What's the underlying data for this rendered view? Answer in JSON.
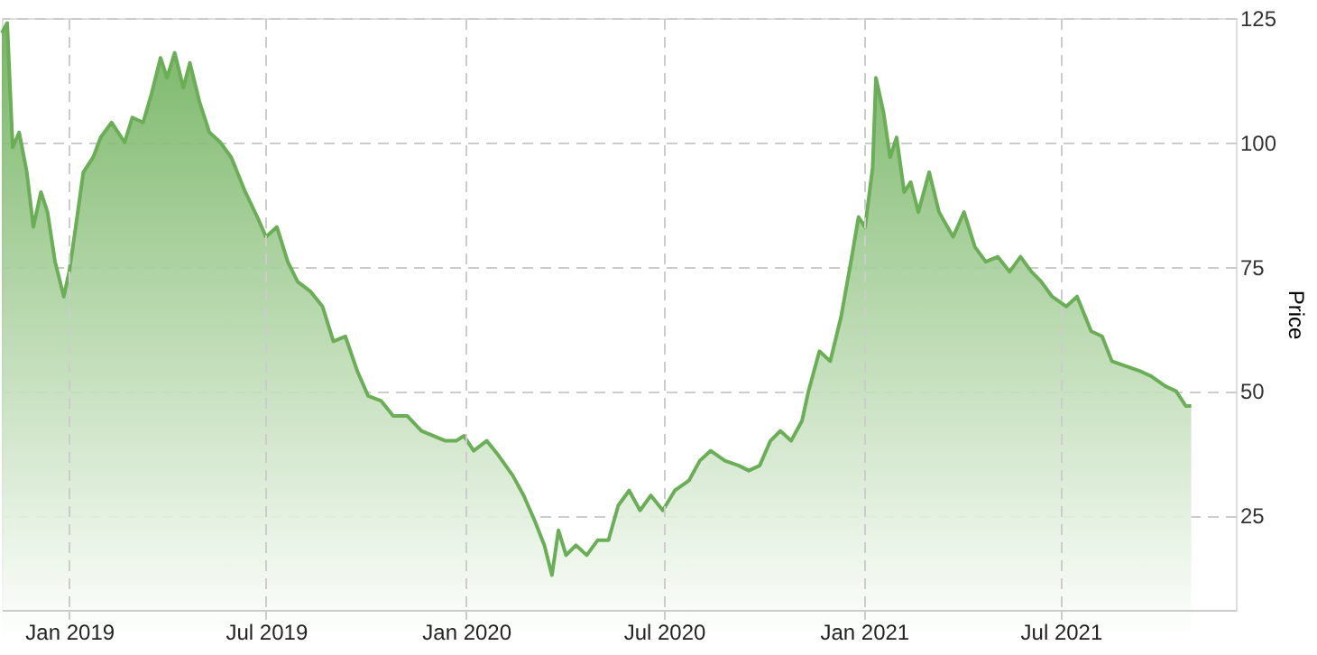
{
  "chart_data": {
    "type": "area",
    "ylabel": "Price",
    "grid": true,
    "line_style": "dashed",
    "xlim": [
      "2018-10-31",
      "2021-12-09"
    ],
    "ylim": [
      6,
      125
    ],
    "yticks": [
      25,
      50,
      75,
      100,
      125
    ],
    "xticks": [
      {
        "value": "2019-01-01",
        "label": "Jan 2019"
      },
      {
        "value": "2019-07-01",
        "label": "Jul 2019"
      },
      {
        "value": "2020-01-01",
        "label": "Jan 2020"
      },
      {
        "value": "2020-07-01",
        "label": "Jul 2020"
      },
      {
        "value": "2021-01-01",
        "label": "Jan 2021"
      },
      {
        "value": "2021-07-01",
        "label": "Jul 2021"
      }
    ],
    "x": [
      "2018-10-31",
      "2018-11-05",
      "2018-11-10",
      "2018-11-16",
      "2018-11-23",
      "2018-11-29",
      "2018-12-06",
      "2018-12-12",
      "2018-12-19",
      "2018-12-27",
      "2019-01-01",
      "2019-01-07",
      "2019-01-14",
      "2019-01-23",
      "2019-01-30",
      "2019-02-09",
      "2019-02-15",
      "2019-02-21",
      "2019-02-28",
      "2019-03-10",
      "2019-03-18",
      "2019-03-26",
      "2019-04-01",
      "2019-04-08",
      "2019-04-16",
      "2019-04-22",
      "2019-05-01",
      "2019-05-10",
      "2019-05-20",
      "2019-05-30",
      "2019-06-12",
      "2019-06-23",
      "2019-07-01",
      "2019-07-11",
      "2019-07-21",
      "2019-07-30",
      "2019-08-11",
      "2019-08-22",
      "2019-09-01",
      "2019-09-12",
      "2019-09-23",
      "2019-10-03",
      "2019-10-15",
      "2019-10-26",
      "2019-11-08",
      "2019-11-21",
      "2019-12-02",
      "2019-12-13",
      "2019-12-23",
      "2019-12-30",
      "2020-01-08",
      "2020-01-20",
      "2020-01-31",
      "2020-02-13",
      "2020-02-23",
      "2020-03-04",
      "2020-03-13",
      "2020-03-20",
      "2020-03-26",
      "2020-04-02",
      "2020-04-11",
      "2020-04-21",
      "2020-05-01",
      "2020-05-11",
      "2020-05-20",
      "2020-05-30",
      "2020-06-09",
      "2020-06-19",
      "2020-06-30",
      "2020-07-11",
      "2020-07-24",
      "2020-08-03",
      "2020-08-13",
      "2020-08-26",
      "2020-09-08",
      "2020-09-17",
      "2020-09-27",
      "2020-10-07",
      "2020-10-16",
      "2020-10-26",
      "2020-11-05",
      "2020-11-11",
      "2020-11-21",
      "2020-12-01",
      "2020-12-11",
      "2020-12-20",
      "2020-12-27",
      "2021-01-02",
      "2021-01-09",
      "2021-01-12",
      "2021-01-19",
      "2021-01-25",
      "2021-01-31",
      "2021-02-07",
      "2021-02-13",
      "2021-02-20",
      "2021-03-02",
      "2021-03-11",
      "2021-03-24",
      "2021-04-03",
      "2021-04-13",
      "2021-04-23",
      "2021-05-04",
      "2021-05-15",
      "2021-05-25",
      "2021-06-04",
      "2021-06-13",
      "2021-06-23",
      "2021-07-06",
      "2021-07-16",
      "2021-07-29",
      "2021-08-08",
      "2021-08-17",
      "2021-08-30",
      "2021-09-12",
      "2021-09-22",
      "2021-10-05",
      "2021-10-15",
      "2021-10-24",
      "2021-10-29"
    ],
    "series": [
      {
        "color": "#6aae56",
        "values": [
          122,
          124,
          99,
          102,
          94,
          83,
          90,
          86,
          76,
          69,
          74,
          83,
          94,
          97,
          101,
          104,
          102,
          100,
          105,
          104,
          110,
          117,
          113,
          118,
          111,
          116,
          108,
          102,
          100,
          97,
          90,
          85,
          81,
          83,
          76,
          72,
          70,
          67,
          60,
          61,
          54,
          49,
          48,
          45,
          45,
          42,
          41,
          40,
          40,
          41,
          38,
          40,
          37,
          33,
          29,
          24,
          19,
          13,
          22,
          17,
          19,
          17,
          20,
          20,
          27,
          30,
          26,
          29,
          26,
          30,
          32,
          36,
          38,
          36,
          35,
          34,
          35,
          40,
          42,
          40,
          44,
          50,
          58,
          56,
          65,
          76,
          85,
          83,
          95,
          113,
          106,
          97,
          101,
          90,
          92,
          86,
          94,
          86,
          81,
          86,
          79,
          76,
          77,
          74,
          77,
          74,
          72,
          69,
          67,
          69,
          62,
          61,
          56,
          55,
          54,
          53,
          51,
          50,
          47,
          47
        ]
      }
    ]
  }
}
